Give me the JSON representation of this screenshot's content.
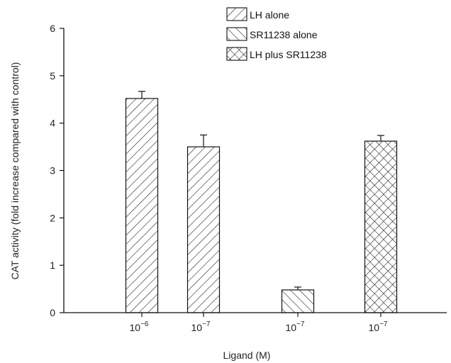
{
  "chart_data": {
    "type": "bar",
    "title": "",
    "xlabel": "Ligand (M)",
    "ylabel": "CAT activity (fold increase compared with control)",
    "ylim": [
      0,
      6
    ],
    "yticks": [
      0,
      1,
      2,
      3,
      4,
      5,
      6
    ],
    "grid": false,
    "legend_position": "top-right",
    "categories": [
      {
        "base": "10",
        "exp": "−6"
      },
      {
        "base": "10",
        "exp": "−7"
      },
      {
        "base": "10",
        "exp": "−7"
      },
      {
        "base": "10",
        "exp": "−7"
      }
    ],
    "series": [
      {
        "name": "LH alone",
        "pattern": "forward-hatch"
      },
      {
        "name": "SR11238 alone",
        "pattern": "back-hatch"
      },
      {
        "name": "LH plus SR11238",
        "pattern": "cross-hatch"
      }
    ],
    "bars": [
      {
        "category_index": 0,
        "series_index": 0,
        "value": 4.52,
        "error": 0.15
      },
      {
        "category_index": 1,
        "series_index": 0,
        "value": 3.5,
        "error": 0.25
      },
      {
        "category_index": 2,
        "series_index": 1,
        "value": 0.48,
        "error": 0.06
      },
      {
        "category_index": 3,
        "series_index": 2,
        "value": 3.62,
        "error": 0.12
      }
    ]
  }
}
